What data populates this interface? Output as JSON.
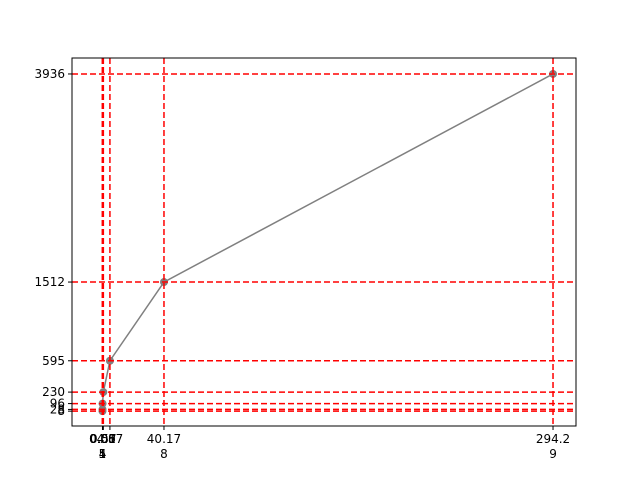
{
  "chart_data": {
    "type": "line",
    "x": [
      0.001,
      0.015,
      0.054,
      0.57,
      4.87,
      40.178,
      294.29
    ],
    "series": [
      {
        "color": "#808080",
        "values": [
          8,
          28,
          96,
          230,
          595,
          1512,
          3936
        ]
      }
    ],
    "xlim": [
      -19.9,
      309.3
    ],
    "ylim": [
      -165,
      4122
    ],
    "xticks": [
      {
        "value": 0.001,
        "label": "0.00\n1"
      },
      {
        "value": 0.015,
        "label": "0.01\n5"
      },
      {
        "value": 0.054,
        "label": "0.05\n4"
      },
      {
        "value": 0.57,
        "label": "0.57"
      },
      {
        "value": 4.87,
        "label": "4.87"
      },
      {
        "value": 40.178,
        "label": "40.17\n8"
      },
      {
        "value": 294.29,
        "label": "294.2\n9"
      }
    ],
    "yticks": [
      8,
      28,
      96,
      230,
      595,
      1512,
      3936
    ],
    "grid": true,
    "grid_color": "#ff0000"
  }
}
